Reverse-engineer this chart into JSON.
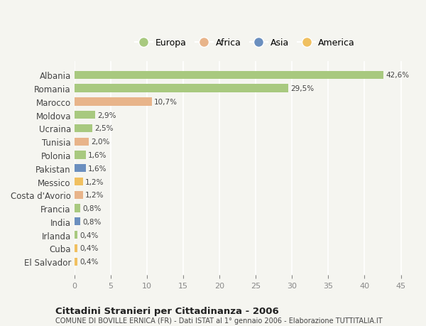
{
  "categories": [
    "Albania",
    "Romania",
    "Marocco",
    "Moldova",
    "Ucraina",
    "Tunisia",
    "Polonia",
    "Pakistan",
    "Messico",
    "Costa d'Avorio",
    "Francia",
    "India",
    "Irlanda",
    "Cuba",
    "El Salvador"
  ],
  "values": [
    42.6,
    29.5,
    10.7,
    2.9,
    2.5,
    2.0,
    1.6,
    1.6,
    1.2,
    1.2,
    0.8,
    0.8,
    0.4,
    0.4,
    0.4
  ],
  "labels": [
    "42,6%",
    "29,5%",
    "10,7%",
    "2,9%",
    "2,5%",
    "2,0%",
    "1,6%",
    "1,6%",
    "1,2%",
    "1,2%",
    "0,8%",
    "0,8%",
    "0,4%",
    "0,4%",
    "0,4%"
  ],
  "continents": [
    "Europa",
    "Europa",
    "Africa",
    "Europa",
    "Europa",
    "Africa",
    "Europa",
    "Asia",
    "America",
    "Africa",
    "Europa",
    "Asia",
    "Europa",
    "America",
    "America"
  ],
  "colors": {
    "Europa": "#a8c97f",
    "Africa": "#e8b48a",
    "Asia": "#6b8fbf",
    "America": "#f0c060"
  },
  "background_color": "#f5f5f0",
  "grid_color": "#ffffff",
  "title": "Cittadini Stranieri per Cittadinanza - 2006",
  "subtitle": "COMUNE DI BOVILLE ERNICA (FR) - Dati ISTAT al 1° gennaio 2006 - Elaborazione TUTTITALIA.IT",
  "xlim": [
    0,
    47
  ],
  "xticks": [
    0,
    5,
    10,
    15,
    20,
    25,
    30,
    35,
    40,
    45
  ],
  "legend_order": [
    "Europa",
    "Africa",
    "Asia",
    "America"
  ]
}
